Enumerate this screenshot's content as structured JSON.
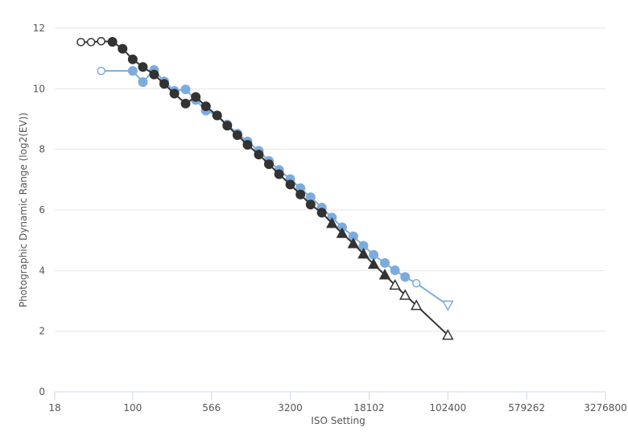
{
  "chart_data": {
    "type": "line",
    "title": "",
    "xlabel": "ISO Setting",
    "ylabel": "Photographic Dynamic Range (log2(EV))",
    "x_scale": "log",
    "xlim": [
      18,
      3276800
    ],
    "ylim": [
      0,
      12
    ],
    "x_ticks": [
      18,
      100,
      566,
      3200,
      18102,
      102400,
      579262,
      3276800
    ],
    "x_tick_labels": [
      "18",
      "100",
      "566",
      "3200",
      "18102",
      "102400",
      "579262",
      "3276800"
    ],
    "y_ticks": [
      0,
      2,
      4,
      6,
      8,
      10,
      12
    ],
    "y_tick_labels": [
      "0",
      "2",
      "4",
      "6",
      "8",
      "10",
      "12"
    ],
    "grid": {
      "y": true,
      "x": false
    },
    "legend": "none",
    "series": [
      {
        "color": "#7cacde",
        "points": [
          {
            "x": 50,
            "y": 10.59,
            "marker": "open-circle"
          },
          {
            "x": 100,
            "y": 10.59,
            "marker": "circle"
          },
          {
            "x": 125,
            "y": 10.22,
            "marker": "circle"
          },
          {
            "x": 160,
            "y": 10.62,
            "marker": "circle"
          },
          {
            "x": 200,
            "y": 10.24,
            "marker": "circle"
          },
          {
            "x": 250,
            "y": 9.93,
            "marker": "circle"
          },
          {
            "x": 320,
            "y": 9.98,
            "marker": "circle"
          },
          {
            "x": 400,
            "y": 9.63,
            "marker": "circle"
          },
          {
            "x": 500,
            "y": 9.28,
            "marker": "circle"
          },
          {
            "x": 640,
            "y": 9.12,
            "marker": "circle"
          },
          {
            "x": 800,
            "y": 8.82,
            "marker": "circle"
          },
          {
            "x": 1000,
            "y": 8.52,
            "marker": "circle"
          },
          {
            "x": 1250,
            "y": 8.26,
            "marker": "circle"
          },
          {
            "x": 1600,
            "y": 7.95,
            "marker": "circle"
          },
          {
            "x": 2000,
            "y": 7.62,
            "marker": "circle"
          },
          {
            "x": 2500,
            "y": 7.32,
            "marker": "circle"
          },
          {
            "x": 3200,
            "y": 7.02,
            "marker": "circle"
          },
          {
            "x": 4000,
            "y": 6.72,
            "marker": "circle"
          },
          {
            "x": 5000,
            "y": 6.42,
            "marker": "circle"
          },
          {
            "x": 6400,
            "y": 6.08,
            "marker": "circle"
          },
          {
            "x": 8000,
            "y": 5.75,
            "marker": "circle"
          },
          {
            "x": 10000,
            "y": 5.43,
            "marker": "circle"
          },
          {
            "x": 12800,
            "y": 5.13,
            "marker": "circle"
          },
          {
            "x": 16000,
            "y": 4.82,
            "marker": "circle"
          },
          {
            "x": 20000,
            "y": 4.52,
            "marker": "circle"
          },
          {
            "x": 25600,
            "y": 4.25,
            "marker": "circle"
          },
          {
            "x": 32000,
            "y": 4.01,
            "marker": "circle"
          },
          {
            "x": 40000,
            "y": 3.79,
            "marker": "circle"
          },
          {
            "x": 51200,
            "y": 3.58,
            "marker": "open-circle"
          },
          {
            "x": 102400,
            "y": 2.86,
            "marker": "open-triangle-down"
          }
        ]
      },
      {
        "color": "#333333",
        "points": [
          {
            "x": 32,
            "y": 11.54,
            "marker": "open-circle"
          },
          {
            "x": 40,
            "y": 11.54,
            "marker": "open-circle"
          },
          {
            "x": 50,
            "y": 11.57,
            "marker": "open-circle"
          },
          {
            "x": 64,
            "y": 11.55,
            "marker": "circle"
          },
          {
            "x": 80,
            "y": 11.32,
            "marker": "circle"
          },
          {
            "x": 100,
            "y": 10.97,
            "marker": "circle"
          },
          {
            "x": 125,
            "y": 10.72,
            "marker": "circle"
          },
          {
            "x": 160,
            "y": 10.47,
            "marker": "circle"
          },
          {
            "x": 200,
            "y": 10.16,
            "marker": "circle"
          },
          {
            "x": 250,
            "y": 9.84,
            "marker": "circle"
          },
          {
            "x": 320,
            "y": 9.51,
            "marker": "circle"
          },
          {
            "x": 400,
            "y": 9.73,
            "marker": "circle"
          },
          {
            "x": 500,
            "y": 9.42,
            "marker": "circle"
          },
          {
            "x": 640,
            "y": 9.12,
            "marker": "circle"
          },
          {
            "x": 800,
            "y": 8.78,
            "marker": "circle"
          },
          {
            "x": 1000,
            "y": 8.47,
            "marker": "circle"
          },
          {
            "x": 1250,
            "y": 8.15,
            "marker": "circle"
          },
          {
            "x": 1600,
            "y": 7.83,
            "marker": "circle"
          },
          {
            "x": 2000,
            "y": 7.51,
            "marker": "circle"
          },
          {
            "x": 2500,
            "y": 7.18,
            "marker": "circle"
          },
          {
            "x": 3200,
            "y": 6.84,
            "marker": "circle"
          },
          {
            "x": 4000,
            "y": 6.51,
            "marker": "circle"
          },
          {
            "x": 5000,
            "y": 6.18,
            "marker": "circle"
          },
          {
            "x": 6400,
            "y": 5.91,
            "marker": "circle"
          },
          {
            "x": 8000,
            "y": 5.56,
            "marker": "triangle-up"
          },
          {
            "x": 10000,
            "y": 5.23,
            "marker": "triangle-up"
          },
          {
            "x": 12800,
            "y": 4.89,
            "marker": "triangle-up"
          },
          {
            "x": 16000,
            "y": 4.55,
            "marker": "triangle-up"
          },
          {
            "x": 20000,
            "y": 4.21,
            "marker": "triangle-up"
          },
          {
            "x": 25600,
            "y": 3.86,
            "marker": "triangle-up"
          },
          {
            "x": 32000,
            "y": 3.52,
            "marker": "open-triangle-up"
          },
          {
            "x": 40000,
            "y": 3.19,
            "marker": "open-triangle-up"
          },
          {
            "x": 51200,
            "y": 2.85,
            "marker": "open-triangle-up"
          },
          {
            "x": 102400,
            "y": 1.87,
            "marker": "open-triangle-up"
          }
        ]
      }
    ]
  }
}
